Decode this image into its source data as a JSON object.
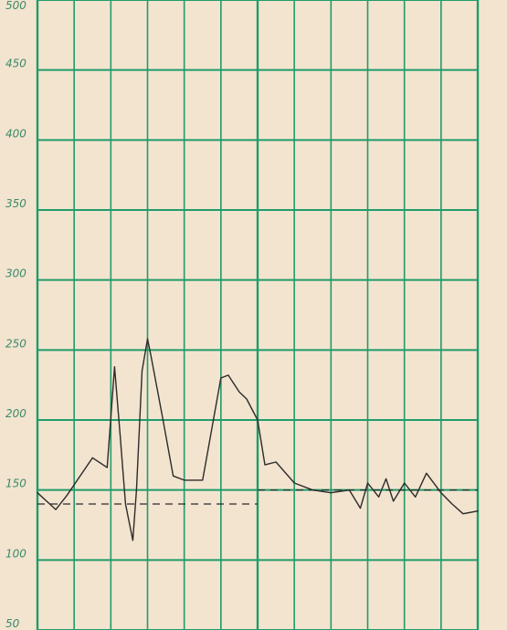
{
  "chart_data": {
    "type": "line",
    "title": "",
    "xlabel": "",
    "ylabel": "",
    "ylim": [
      50,
      500
    ],
    "xlim": [
      0,
      12
    ],
    "yticks": [
      50,
      100,
      150,
      200,
      250,
      300,
      350,
      400,
      450,
      500
    ],
    "ytick_labels": [
      "50",
      "100",
      "150",
      "200",
      "250",
      "300",
      "350",
      "400",
      "450",
      "500"
    ],
    "grid": true,
    "colors": {
      "paper": "#f3e4cf",
      "grid": "#1f9c6a",
      "curve": "#2b2b2b",
      "tick_label": "#3b8a6b"
    },
    "series": [
      {
        "x": [
          0,
          0.5,
          0.8,
          1.5,
          1.9,
          2.1,
          2.25,
          2.4,
          2.6,
          2.7,
          2.85,
          3.0,
          3.1,
          3.4,
          3.7,
          4.0,
          4.5,
          5.0,
          5.2,
          5.5,
          5.7,
          6.0,
          6.2,
          6.5,
          7.0,
          7.5,
          8.0,
          8.5,
          8.8,
          9.0,
          9.3,
          9.5,
          9.7,
          10.0,
          10.3,
          10.6,
          11.0,
          11.3,
          11.6,
          12.0
        ],
        "y": [
          148,
          136,
          146,
          173,
          166,
          238,
          190,
          140,
          114,
          150,
          235,
          258,
          245,
          203,
          160,
          157,
          157,
          230,
          232,
          220,
          215,
          200,
          168,
          170,
          155,
          150,
          148,
          150,
          137,
          155,
          145,
          158,
          142,
          155,
          145,
          162,
          148,
          140,
          133,
          135
        ]
      }
    ],
    "reference_lines": [
      {
        "y": 140,
        "x_start": 0,
        "x_end": 6,
        "style": "dashed"
      },
      {
        "y": 150,
        "x_start": 6,
        "x_end": 12,
        "style": "dashed"
      }
    ]
  }
}
